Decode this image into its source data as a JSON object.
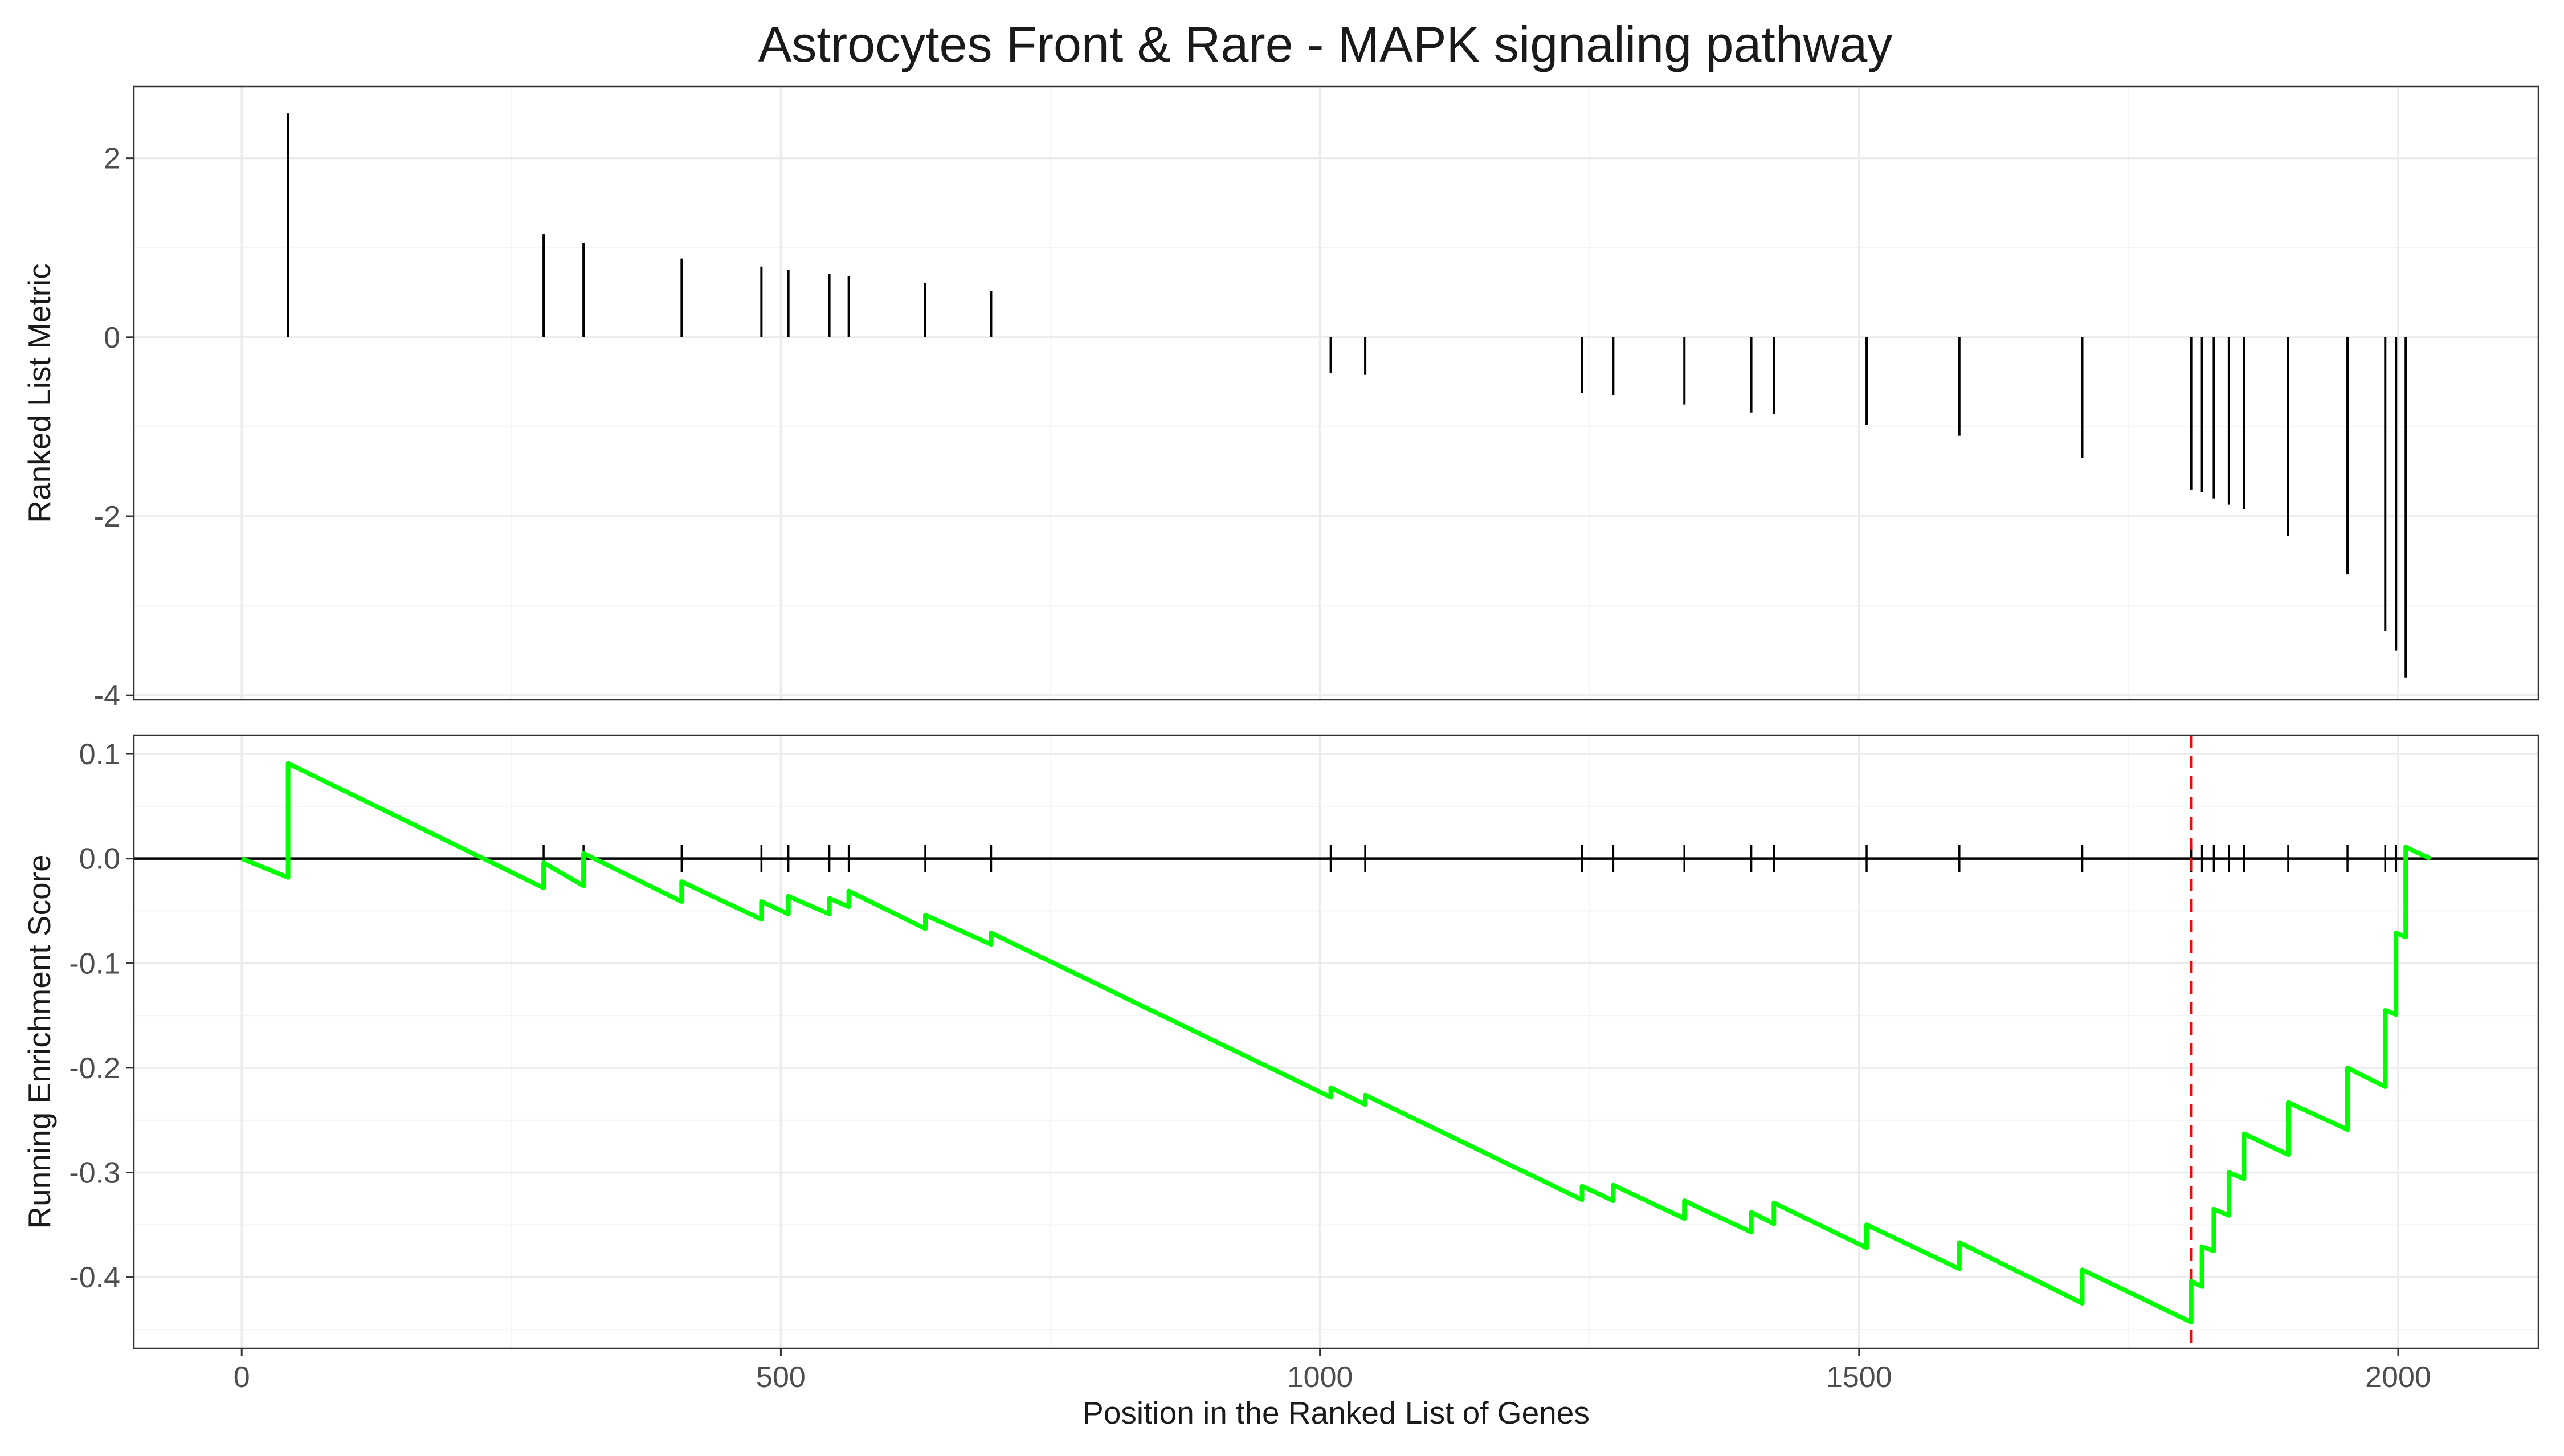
{
  "chart_data": {
    "type": "line",
    "title": "Astrocytes Front & Rare - MAPK signaling pathway",
    "xlabel": "Position in the Ranked List of Genes",
    "x_ticks": [
      0,
      500,
      1000,
      1500,
      2000
    ],
    "xlim": [
      -100,
      2130
    ],
    "top_panel": {
      "type": "bar",
      "ylabel": "Ranked List Metric",
      "ylim": [
        -4.05,
        2.8
      ],
      "y_ticks": [
        -4,
        -2,
        0,
        2
      ],
      "grid": true,
      "series": [
        {
          "x": [
            43,
            280,
            317,
            408,
            482,
            507,
            545,
            563,
            634,
            695,
            1010,
            1042,
            1243,
            1272,
            1338,
            1400,
            1421,
            1507,
            1593,
            1707,
            1808,
            1818,
            1829,
            1843,
            1857,
            1898,
            1953,
            1988,
            1998,
            2007
          ],
          "values": [
            2.5,
            1.15,
            1.05,
            0.88,
            0.79,
            0.75,
            0.71,
            0.68,
            0.61,
            0.52,
            -0.4,
            -0.42,
            -0.62,
            -0.65,
            -0.75,
            -0.84,
            -0.86,
            -0.98,
            -1.1,
            -1.35,
            -1.7,
            -1.73,
            -1.8,
            -1.87,
            -1.92,
            -2.22,
            -2.65,
            -3.28,
            -3.5,
            -3.8
          ]
        }
      ]
    },
    "bottom_panel": {
      "type": "line",
      "ylabel": "Running Enrichment Score",
      "ylim": [
        -0.468,
        0.118
      ],
      "y_ticks": [
        -0.4,
        -0.3,
        -0.2,
        -0.1,
        0.0,
        0.1
      ],
      "y_tick_labels": [
        "-0.4",
        "-0.3",
        "-0.2",
        "-0.1",
        "0.0",
        "0.1"
      ],
      "grid": true,
      "series": [
        {
          "color": "#00ff00",
          "x": [
            0,
            43,
            43,
            280,
            280,
            317,
            317,
            408,
            408,
            482,
            482,
            507,
            507,
            545,
            545,
            563,
            563,
            634,
            634,
            695,
            695,
            1010,
            1010,
            1042,
            1042,
            1243,
            1243,
            1272,
            1272,
            1338,
            1338,
            1400,
            1400,
            1421,
            1421,
            1507,
            1507,
            1593,
            1593,
            1707,
            1707,
            1808,
            1808,
            1818,
            1818,
            1829,
            1829,
            1843,
            1843,
            1857,
            1857,
            1898,
            1898,
            1953,
            1953,
            1988,
            1988,
            1998,
            1998,
            2007,
            2007,
            2030
          ],
          "y": [
            0.0,
            -0.018,
            0.091,
            -0.028,
            -0.004,
            -0.026,
            0.005,
            -0.041,
            -0.022,
            -0.058,
            -0.041,
            -0.053,
            -0.036,
            -0.053,
            -0.038,
            -0.046,
            -0.031,
            -0.067,
            -0.054,
            -0.082,
            -0.071,
            -0.228,
            -0.219,
            -0.235,
            -0.226,
            -0.326,
            -0.313,
            -0.327,
            -0.312,
            -0.344,
            -0.327,
            -0.357,
            -0.338,
            -0.349,
            -0.329,
            -0.372,
            -0.35,
            -0.392,
            -0.367,
            -0.425,
            -0.393,
            -0.443,
            -0.404,
            -0.409,
            -0.371,
            -0.375,
            -0.335,
            -0.341,
            -0.3,
            -0.306,
            -0.263,
            -0.283,
            -0.233,
            -0.259,
            -0.2,
            -0.218,
            -0.145,
            -0.149,
            -0.071,
            -0.075,
            0.011,
            0.0
          ]
        }
      ],
      "hit_positions": [
        43,
        280,
        317,
        408,
        482,
        507,
        545,
        563,
        634,
        695,
        1010,
        1042,
        1243,
        1272,
        1338,
        1400,
        1421,
        1507,
        1593,
        1707,
        1808,
        1818,
        1829,
        1843,
        1857,
        1898,
        1953,
        1988,
        1998,
        2007
      ],
      "peak_position": 1808,
      "peak_color": "#ff0000",
      "zero_line": 0.0
    }
  }
}
